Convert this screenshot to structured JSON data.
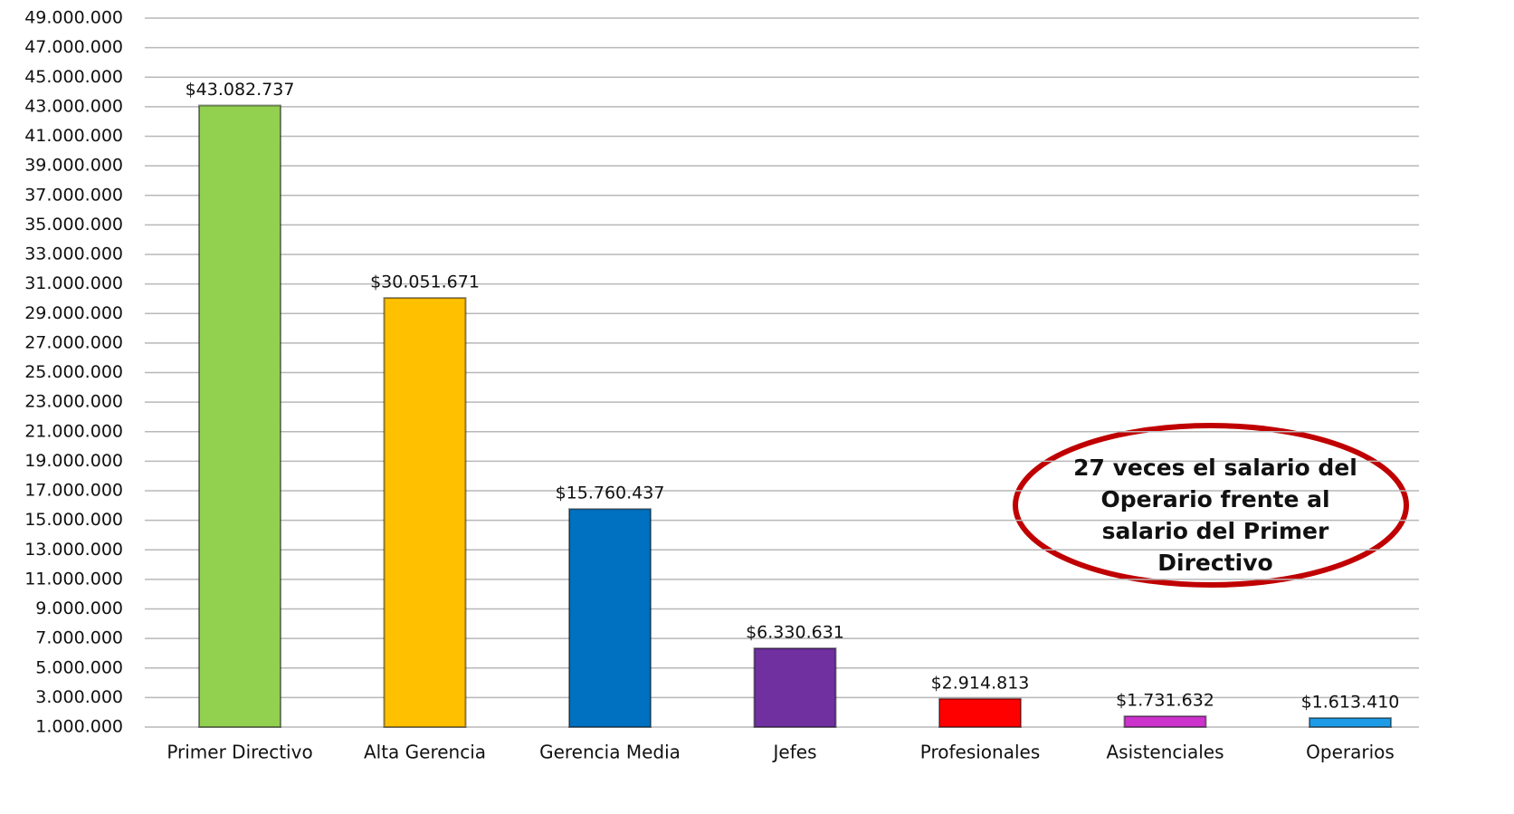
{
  "chart_data": {
    "type": "bar",
    "categories": [
      "Primer Directivo",
      "Alta Gerencia",
      "Gerencia Media",
      "Jefes",
      "Profesionales",
      "Asistenciales",
      "Operarios"
    ],
    "values": [
      43082737,
      30051671,
      15760437,
      6330631,
      2914813,
      1731632,
      1613410
    ],
    "value_labels": [
      "$43.082.737",
      "$30.051.671",
      "$15.760.437",
      "$6.330.631",
      "$2.914.813",
      "$1.731.632",
      "$1.613.410"
    ],
    "colors": [
      "#92d050",
      "#ffc000",
      "#0070c0",
      "#7030a0",
      "#ff0000",
      "#cc33cc",
      "#1e9be6"
    ],
    "ylim": [
      1000000,
      49000000
    ],
    "yticks": [
      {
        "value": 1000000,
        "label": "1.000.000"
      },
      {
        "value": 3000000,
        "label": "3.000.000"
      },
      {
        "value": 5000000,
        "label": "5.000.000"
      },
      {
        "value": 7000000,
        "label": "7.000.000"
      },
      {
        "value": 9000000,
        "label": "9.000.000"
      },
      {
        "value": 11000000,
        "label": "11.000.000"
      },
      {
        "value": 13000000,
        "label": "13.000.000"
      },
      {
        "value": 15000000,
        "label": "15.000.000"
      },
      {
        "value": 17000000,
        "label": "17.000.000"
      },
      {
        "value": 19000000,
        "label": "19.000.000"
      },
      {
        "value": 21000000,
        "label": "21.000.000"
      },
      {
        "value": 23000000,
        "label": "23.000.000"
      },
      {
        "value": 25000000,
        "label": "25.000.000"
      },
      {
        "value": 27000000,
        "label": "27.000.000"
      },
      {
        "value": 29000000,
        "label": "29.000.000"
      },
      {
        "value": 31000000,
        "label": "31.000.000"
      },
      {
        "value": 33000000,
        "label": "33.000.000"
      },
      {
        "value": 35000000,
        "label": "35.000.000"
      },
      {
        "value": 37000000,
        "label": "37.000.000"
      },
      {
        "value": 39000000,
        "label": "39.000.000"
      },
      {
        "value": 41000000,
        "label": "41.000.000"
      },
      {
        "value": 43000000,
        "label": "43.000.000"
      },
      {
        "value": 45000000,
        "label": "45.000.000"
      },
      {
        "value": 47000000,
        "label": "47.000.000"
      },
      {
        "value": 49000000,
        "label": "49.000.000"
      }
    ],
    "grid": true,
    "annotation": [
      "27 veces el salario del",
      "Operario frente al",
      "salario del Primer",
      "Directivo"
    ]
  }
}
